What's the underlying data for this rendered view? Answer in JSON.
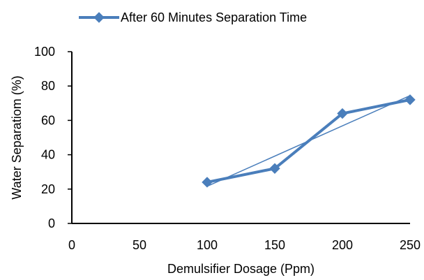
{
  "chart_data": {
    "type": "scatter",
    "title": "",
    "xlabel": "Demulsifier Dosage (Ppm)",
    "ylabel": "Water Separatiom (%)",
    "xlim": [
      0,
      250
    ],
    "ylim": [
      0,
      100
    ],
    "xticks": [
      0,
      50,
      100,
      150,
      200,
      250
    ],
    "yticks": [
      0,
      20,
      40,
      60,
      80,
      100
    ],
    "grid": false,
    "legend_position": "top",
    "series": [
      {
        "name": "After 60 Minutes Separation Time",
        "color": "#4a7ebb",
        "marker": "diamond",
        "x": [
          100,
          150,
          200,
          250
        ],
        "y": [
          24,
          32,
          64,
          72
        ]
      }
    ],
    "trendline": {
      "type": "linear",
      "color": "#4a7ebb"
    }
  }
}
